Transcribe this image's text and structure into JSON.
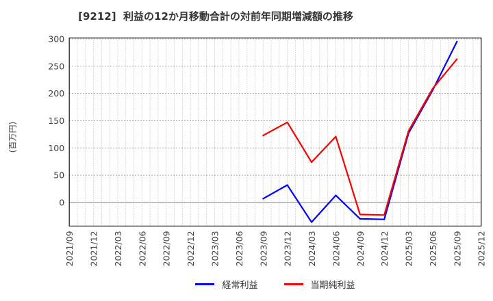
{
  "title": "[9212]  利益の12か月移動合計の対前年同期増減額の推移",
  "chart_data": {
    "type": "line",
    "title": "[9212]  利益の12か月移動合計の対前年同期増減額の推移",
    "ylabel": "(百万円)",
    "xlabel": "",
    "grid": "both, dotted gray",
    "legend_position": "bottom-center",
    "x_range": [
      "2021/09",
      "2025/12"
    ],
    "x_tick_interval_months": 3,
    "minor_vertical_grid_interval_months": 1,
    "x_tick_labels": [
      "2021/09",
      "2021/12",
      "2022/03",
      "2022/06",
      "2022/09",
      "2022/12",
      "2023/03",
      "2023/06",
      "2023/09",
      "2023/12",
      "2024/03",
      "2024/06",
      "2024/09",
      "2024/12",
      "2025/03",
      "2025/06",
      "2025/09",
      "2025/12"
    ],
    "y_ticks": [
      0,
      50,
      100,
      150,
      200,
      250,
      300
    ],
    "ylim": [
      -43,
      302
    ],
    "series": [
      {
        "name": "経常利益",
        "color": "#0000ff",
        "points": [
          {
            "x": "2023/09",
            "y": 7
          },
          {
            "x": "2023/12",
            "y": 32
          },
          {
            "x": "2024/03",
            "y": -36
          },
          {
            "x": "2024/06",
            "y": 13
          },
          {
            "x": "2024/09",
            "y": -30
          },
          {
            "x": "2024/12",
            "y": -31
          },
          {
            "x": "2025/03",
            "y": 127
          },
          {
            "x": "2025/06",
            "y": 206
          },
          {
            "x": "2025/09",
            "y": 295
          }
        ]
      },
      {
        "name": "当期純利益",
        "color": "#ff0000",
        "points": [
          {
            "x": "2023/09",
            "y": 123
          },
          {
            "x": "2023/12",
            "y": 147
          },
          {
            "x": "2024/03",
            "y": 74
          },
          {
            "x": "2024/06",
            "y": 121
          },
          {
            "x": "2024/09",
            "y": -22
          },
          {
            "x": "2024/12",
            "y": -23
          },
          {
            "x": "2025/03",
            "y": 131
          },
          {
            "x": "2025/06",
            "y": 209
          },
          {
            "x": "2025/09",
            "y": 263
          }
        ]
      }
    ],
    "colors": {
      "axis_border": "#262626",
      "grid_minor_vertical": "#b8b8b8",
      "grid_horizontal": "#8f8f8f",
      "zero_line": "#7f7f7f",
      "tick_label": "#404040",
      "title_text": "#333333"
    }
  }
}
